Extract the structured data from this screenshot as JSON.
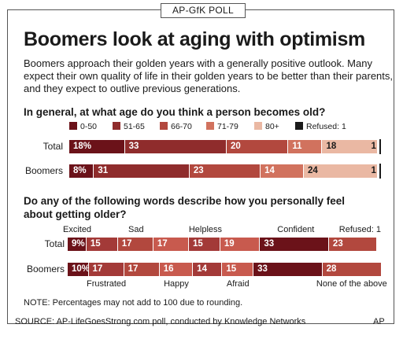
{
  "header": {
    "poll_tag": "AP-GfK POLL",
    "title": "Boomers look at aging with optimism",
    "intro": "Boomers approach their golden years with a generally positive outlook. Many expect their own quality of life in their golden years to be better than their parents, and they expect to outlive previous generations."
  },
  "chart_data": [
    {
      "type": "bar",
      "orientation": "horizontal",
      "stacked": true,
      "title": "In general, at what age do you think a person becomes old?",
      "categories": [
        "Total",
        "Boomers"
      ],
      "series": [
        {
          "name": "0-50",
          "values": [
            18,
            8
          ],
          "labels": [
            "18%",
            "8%"
          ],
          "color": "#6b1219",
          "text_color": "#ffffff"
        },
        {
          "name": "51-65",
          "values": [
            33,
            31
          ],
          "labels": [
            "33",
            "31"
          ],
          "color": "#8f2c2c",
          "text_color": "#ffffff"
        },
        {
          "name": "66-70",
          "values": [
            20,
            23
          ],
          "labels": [
            "20",
            "23"
          ],
          "color": "#b2483e",
          "text_color": "#ffffff"
        },
        {
          "name": "71-79",
          "values": [
            11,
            14
          ],
          "labels": [
            "11",
            "14"
          ],
          "color": "#d1725e",
          "text_color": "#ffffff"
        },
        {
          "name": "80+",
          "values": [
            18,
            24
          ],
          "labels": [
            "18",
            "24"
          ],
          "color": "#eab8a3",
          "text_color": "#1a1a1a"
        },
        {
          "name": "Refused: 1",
          "values": [
            1,
            1
          ],
          "labels": [
            "1",
            "1"
          ],
          "color": "#ffffff",
          "text_color": "#1a1a1a"
        }
      ],
      "legend_position": "top"
    },
    {
      "type": "bar",
      "orientation": "horizontal",
      "stacked": true,
      "title": "Do any of the following words describe how you personally feel about getting older?",
      "categories": [
        "Total",
        "Boomers"
      ],
      "segment_colors": [
        "#6b1219",
        "#a33a38",
        "#b2483e",
        "#c85a4e",
        "#a33a38",
        "#c85a4e",
        "#6b1219",
        "#b2483e",
        "#ffffff"
      ],
      "rows": [
        {
          "name": "Total",
          "segments": [
            {
              "word": "Excited",
              "value": 9,
              "label": "9%"
            },
            {
              "word": "Frustrated",
              "value": 15,
              "label": "15"
            },
            {
              "word": "Sad",
              "value": 17,
              "label": "17"
            },
            {
              "word": "Happy",
              "value": 17,
              "label": "17"
            },
            {
              "word": "Helpless",
              "value": 15,
              "label": "15"
            },
            {
              "word": "Afraid",
              "value": 19,
              "label": "19"
            },
            {
              "word": "Confident",
              "value": 33,
              "label": "33"
            },
            {
              "word": "None of the above",
              "value": 23,
              "label": "23"
            },
            {
              "word": "Refused: 1",
              "value": 1,
              "label": ""
            }
          ]
        },
        {
          "name": "Boomers",
          "segments": [
            {
              "word": "Excited",
              "value": 10,
              "label": "10%"
            },
            {
              "word": "Frustrated",
              "value": 17,
              "label": "17"
            },
            {
              "word": "Sad",
              "value": 17,
              "label": "17"
            },
            {
              "word": "Happy",
              "value": 16,
              "label": "16"
            },
            {
              "word": "Helpless",
              "value": 14,
              "label": "14"
            },
            {
              "word": "Afraid",
              "value": 15,
              "label": "15"
            },
            {
              "word": "Confident",
              "value": 33,
              "label": "33"
            },
            {
              "word": "None of the above",
              "value": 28,
              "label": "28"
            }
          ]
        }
      ],
      "words_above": [
        "Excited",
        "Sad",
        "Helpless",
        "Confident",
        "Refused: 1"
      ],
      "words_below": [
        "Frustrated",
        "Happy",
        "Afraid",
        "None of the above"
      ]
    }
  ],
  "footer": {
    "note": "NOTE: Percentages may not add to 100 due to rounding.",
    "source": "SOURCE: AP-LifeGoesStrong.com poll, conducted by Knowledge Networks",
    "credit": "AP"
  }
}
